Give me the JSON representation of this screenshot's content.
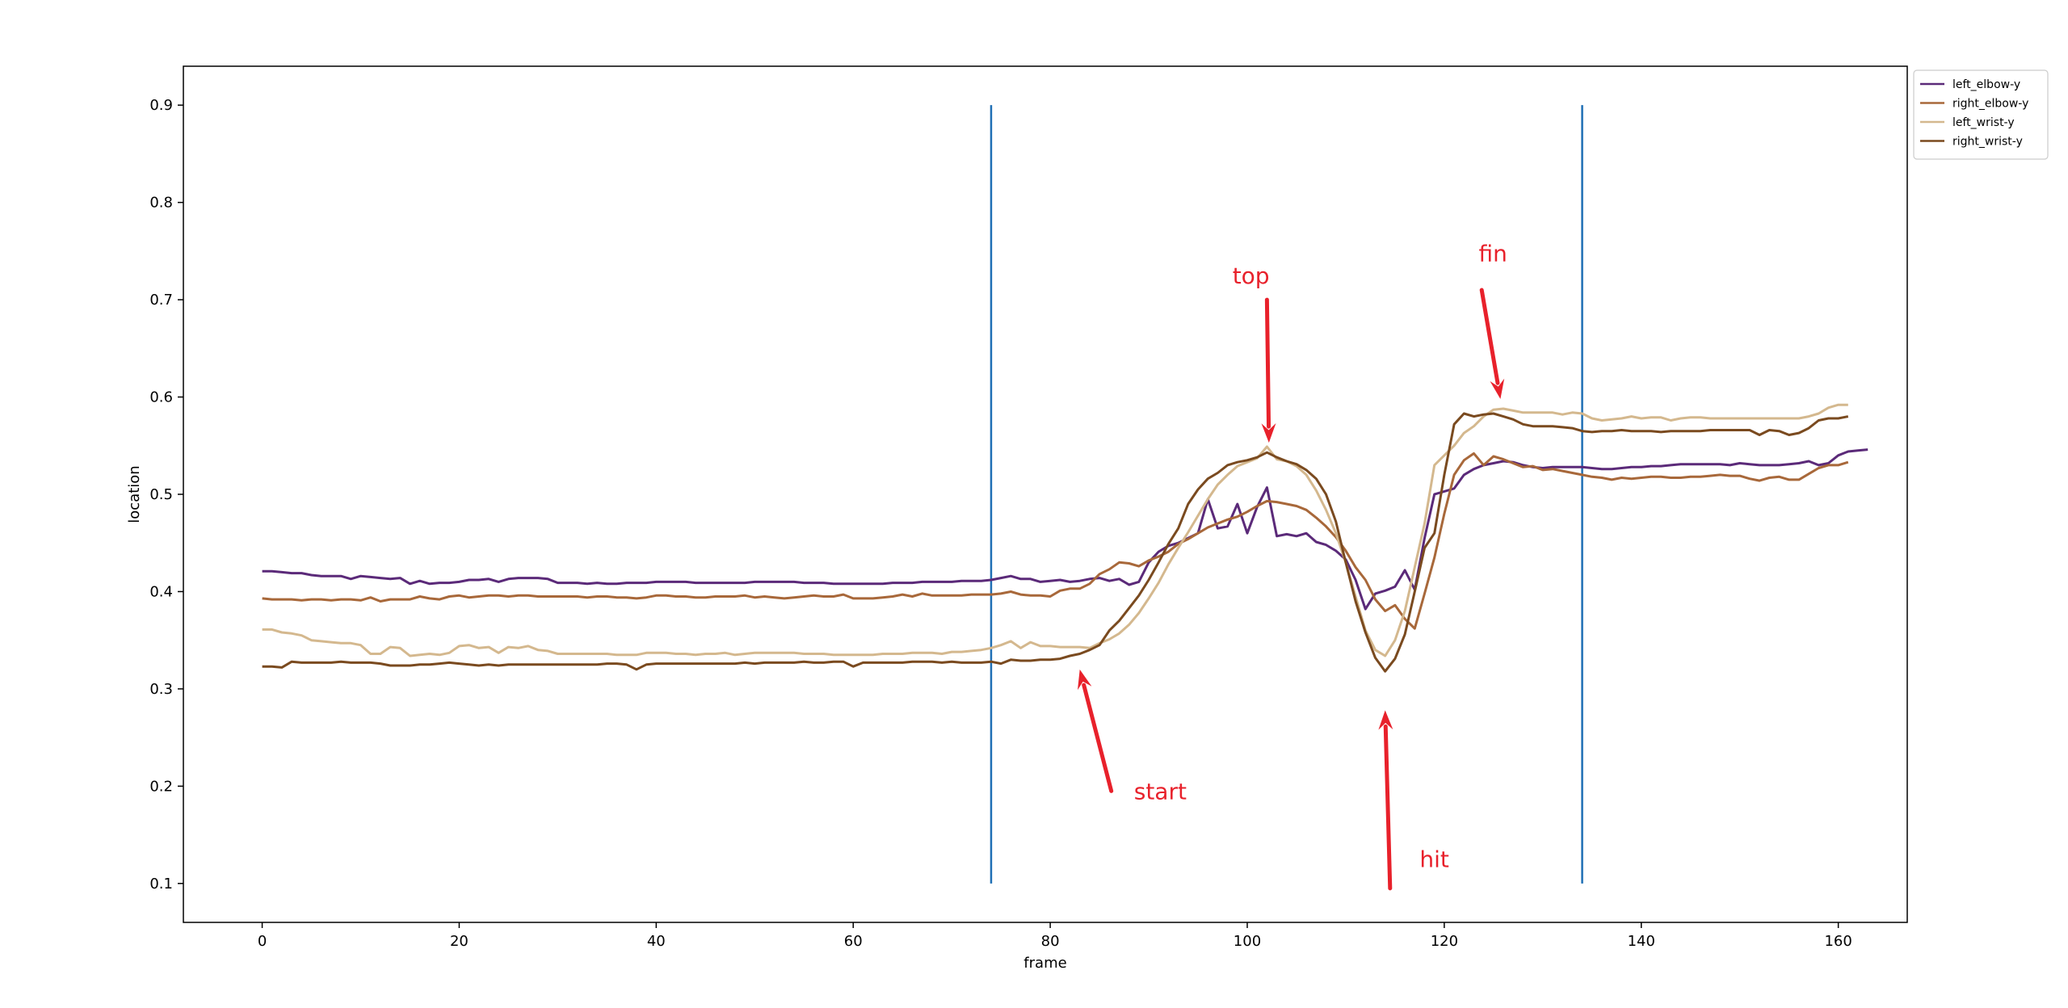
{
  "chart_data": {
    "type": "line",
    "title": "",
    "xlabel": "frame",
    "ylabel": "location",
    "xlim": [
      -8,
      167
    ],
    "ylim": [
      0.06,
      0.94
    ],
    "xticks": [
      0,
      20,
      40,
      60,
      80,
      100,
      120,
      140,
      160
    ],
    "yticks": [
      0.1,
      0.2,
      0.3,
      0.4,
      0.5,
      0.6,
      0.7,
      0.8,
      0.9
    ],
    "xtick_labels": [
      "0",
      "20",
      "40",
      "60",
      "80",
      "100",
      "120",
      "140",
      "160"
    ],
    "ytick_labels": [
      "0.1",
      "0.2",
      "0.3",
      "0.4",
      "0.5",
      "0.6",
      "0.7",
      "0.8",
      "0.9"
    ],
    "grid": false,
    "legend_position": "outside-top-right",
    "x_start": 0,
    "vlines": [
      {
        "x": 74,
        "y0": 0.1,
        "y1": 0.9,
        "color": "#1f6fb5"
      },
      {
        "x": 134,
        "y0": 0.1,
        "y1": 0.9,
        "color": "#1f6fb5"
      }
    ],
    "annotations": [
      {
        "text": "start",
        "text_x": 88.5,
        "text_y": 0.195,
        "arrow_from": [
          86.2,
          0.195
        ],
        "arrow_to": [
          83.0,
          0.32
        ]
      },
      {
        "text": "top",
        "text_x": 98.5,
        "text_y": 0.725,
        "arrow_from": [
          102.0,
          0.7
        ],
        "arrow_to": [
          102.2,
          0.553
        ]
      },
      {
        "text": "hit",
        "text_x": 117.5,
        "text_y": 0.125,
        "arrow_from": [
          114.5,
          0.095
        ],
        "arrow_to": [
          114.0,
          0.278
        ]
      },
      {
        "text": "fin",
        "text_x": 123.5,
        "text_y": 0.748,
        "arrow_from": [
          123.8,
          0.71
        ],
        "arrow_to": [
          125.7,
          0.598
        ]
      }
    ],
    "series": [
      {
        "name": "left_elbow-y",
        "color": "#5b2a79",
        "values": [
          0.421,
          0.421,
          0.42,
          0.419,
          0.419,
          0.417,
          0.416,
          0.416,
          0.416,
          0.413,
          0.416,
          0.415,
          0.414,
          0.413,
          0.414,
          0.408,
          0.411,
          0.408,
          0.409,
          0.409,
          0.41,
          0.412,
          0.412,
          0.413,
          0.41,
          0.413,
          0.414,
          0.414,
          0.414,
          0.413,
          0.409,
          0.409,
          0.409,
          0.408,
          0.409,
          0.408,
          0.408,
          0.409,
          0.409,
          0.409,
          0.41,
          0.41,
          0.41,
          0.41,
          0.409,
          0.409,
          0.409,
          0.409,
          0.409,
          0.409,
          0.41,
          0.41,
          0.41,
          0.41,
          0.41,
          0.409,
          0.409,
          0.409,
          0.408,
          0.408,
          0.408,
          0.408,
          0.408,
          0.408,
          0.409,
          0.409,
          0.409,
          0.41,
          0.41,
          0.41,
          0.41,
          0.411,
          0.411,
          0.411,
          0.412,
          0.414,
          0.416,
          0.413,
          0.413,
          0.41,
          0.411,
          0.412,
          0.41,
          0.411,
          0.413,
          0.414,
          0.411,
          0.413,
          0.407,
          0.41,
          0.43,
          0.441,
          0.447,
          0.45,
          0.455,
          0.46,
          0.495,
          0.465,
          0.467,
          0.49,
          0.46,
          0.487,
          0.507,
          0.457,
          0.459,
          0.457,
          0.46,
          0.451,
          0.448,
          0.442,
          0.433,
          0.412,
          0.382,
          0.398,
          0.401,
          0.405,
          0.422,
          0.402,
          0.455,
          0.5,
          0.503,
          0.506,
          0.52,
          0.526,
          0.53,
          0.532,
          0.534,
          0.533,
          0.53,
          0.528,
          0.527,
          0.528,
          0.528,
          0.528,
          0.528,
          0.527,
          0.526,
          0.526,
          0.527,
          0.528,
          0.528,
          0.529,
          0.529,
          0.53,
          0.531,
          0.531,
          0.531,
          0.531,
          0.531,
          0.53,
          0.532,
          0.531,
          0.53,
          0.53,
          0.53,
          0.531,
          0.532,
          0.534,
          0.53,
          0.532,
          0.54,
          0.544,
          0.545,
          0.546
        ]
      },
      {
        "name": "right_elbow-y",
        "color": "#a8683a",
        "values": [
          0.393,
          0.392,
          0.392,
          0.392,
          0.391,
          0.392,
          0.392,
          0.391,
          0.392,
          0.392,
          0.391,
          0.394,
          0.39,
          0.392,
          0.392,
          0.392,
          0.395,
          0.393,
          0.392,
          0.395,
          0.396,
          0.394,
          0.395,
          0.396,
          0.396,
          0.395,
          0.396,
          0.396,
          0.395,
          0.395,
          0.395,
          0.395,
          0.395,
          0.394,
          0.395,
          0.395,
          0.394,
          0.394,
          0.393,
          0.394,
          0.396,
          0.396,
          0.395,
          0.395,
          0.394,
          0.394,
          0.395,
          0.395,
          0.395,
          0.396,
          0.394,
          0.395,
          0.394,
          0.393,
          0.394,
          0.395,
          0.396,
          0.395,
          0.395,
          0.397,
          0.393,
          0.393,
          0.393,
          0.394,
          0.395,
          0.397,
          0.395,
          0.398,
          0.396,
          0.396,
          0.396,
          0.396,
          0.397,
          0.397,
          0.397,
          0.398,
          0.4,
          0.397,
          0.396,
          0.396,
          0.395,
          0.401,
          0.403,
          0.403,
          0.408,
          0.418,
          0.423,
          0.43,
          0.429,
          0.426,
          0.432,
          0.436,
          0.441,
          0.449,
          0.454,
          0.46,
          0.466,
          0.47,
          0.474,
          0.477,
          0.482,
          0.488,
          0.493,
          0.492,
          0.49,
          0.488,
          0.484,
          0.476,
          0.467,
          0.456,
          0.442,
          0.425,
          0.412,
          0.392,
          0.38,
          0.386,
          0.372,
          0.362,
          0.398,
          0.435,
          0.48,
          0.52,
          0.535,
          0.542,
          0.53,
          0.539,
          0.536,
          0.532,
          0.528,
          0.529,
          0.525,
          0.526,
          0.524,
          0.522,
          0.52,
          0.518,
          0.517,
          0.515,
          0.517,
          0.516,
          0.517,
          0.518,
          0.518,
          0.517,
          0.517,
          0.518,
          0.518,
          0.519,
          0.52,
          0.519,
          0.519,
          0.516,
          0.514,
          0.517,
          0.518,
          0.515,
          0.515,
          0.521,
          0.527,
          0.53,
          0.53,
          0.533
        ]
      },
      {
        "name": "left_wrist-y",
        "color": "#d4b88e",
        "values": [
          0.361,
          0.361,
          0.358,
          0.357,
          0.355,
          0.35,
          0.349,
          0.348,
          0.347,
          0.347,
          0.345,
          0.336,
          0.336,
          0.343,
          0.342,
          0.334,
          0.335,
          0.336,
          0.335,
          0.337,
          0.344,
          0.345,
          0.342,
          0.343,
          0.337,
          0.343,
          0.342,
          0.344,
          0.34,
          0.339,
          0.336,
          0.336,
          0.336,
          0.336,
          0.336,
          0.336,
          0.335,
          0.335,
          0.335,
          0.337,
          0.337,
          0.337,
          0.336,
          0.336,
          0.335,
          0.336,
          0.336,
          0.337,
          0.335,
          0.336,
          0.337,
          0.337,
          0.337,
          0.337,
          0.337,
          0.336,
          0.336,
          0.336,
          0.335,
          0.335,
          0.335,
          0.335,
          0.335,
          0.336,
          0.336,
          0.336,
          0.337,
          0.337,
          0.337,
          0.336,
          0.338,
          0.338,
          0.339,
          0.34,
          0.342,
          0.345,
          0.349,
          0.342,
          0.348,
          0.344,
          0.344,
          0.343,
          0.343,
          0.343,
          0.342,
          0.347,
          0.351,
          0.357,
          0.366,
          0.378,
          0.393,
          0.409,
          0.428,
          0.445,
          0.461,
          0.478,
          0.495,
          0.51,
          0.52,
          0.529,
          0.533,
          0.537,
          0.549,
          0.536,
          0.534,
          0.529,
          0.52,
          0.504,
          0.484,
          0.46,
          0.43,
          0.395,
          0.36,
          0.34,
          0.334,
          0.35,
          0.38,
          0.425,
          0.47,
          0.53,
          0.54,
          0.55,
          0.563,
          0.57,
          0.58,
          0.587,
          0.588,
          0.586,
          0.584,
          0.584,
          0.584,
          0.584,
          0.582,
          0.584,
          0.583,
          0.578,
          0.576,
          0.577,
          0.578,
          0.58,
          0.578,
          0.579,
          0.579,
          0.576,
          0.578,
          0.579,
          0.579,
          0.578,
          0.578,
          0.578,
          0.578,
          0.578,
          0.578,
          0.578,
          0.578,
          0.578,
          0.578,
          0.58,
          0.583,
          0.589,
          0.592,
          0.592
        ]
      },
      {
        "name": "right_wrist-y",
        "color": "#7a4a1f",
        "values": [
          0.323,
          0.323,
          0.322,
          0.328,
          0.327,
          0.327,
          0.327,
          0.327,
          0.328,
          0.327,
          0.327,
          0.327,
          0.326,
          0.324,
          0.324,
          0.324,
          0.325,
          0.325,
          0.326,
          0.327,
          0.326,
          0.325,
          0.324,
          0.325,
          0.324,
          0.325,
          0.325,
          0.325,
          0.325,
          0.325,
          0.325,
          0.325,
          0.325,
          0.325,
          0.325,
          0.326,
          0.326,
          0.325,
          0.32,
          0.325,
          0.326,
          0.326,
          0.326,
          0.326,
          0.326,
          0.326,
          0.326,
          0.326,
          0.326,
          0.327,
          0.326,
          0.327,
          0.327,
          0.327,
          0.327,
          0.328,
          0.327,
          0.327,
          0.328,
          0.328,
          0.323,
          0.327,
          0.327,
          0.327,
          0.327,
          0.327,
          0.328,
          0.328,
          0.328,
          0.327,
          0.328,
          0.327,
          0.327,
          0.327,
          0.328,
          0.326,
          0.33,
          0.329,
          0.329,
          0.33,
          0.33,
          0.331,
          0.334,
          0.336,
          0.34,
          0.345,
          0.36,
          0.37,
          0.383,
          0.396,
          0.412,
          0.43,
          0.449,
          0.465,
          0.49,
          0.505,
          0.516,
          0.522,
          0.53,
          0.533,
          0.535,
          0.538,
          0.543,
          0.538,
          0.534,
          0.531,
          0.525,
          0.516,
          0.5,
          0.472,
          0.43,
          0.39,
          0.358,
          0.332,
          0.318,
          0.331,
          0.356,
          0.4,
          0.445,
          0.46,
          0.52,
          0.572,
          0.583,
          0.58,
          0.582,
          0.583,
          0.58,
          0.577,
          0.572,
          0.57,
          0.57,
          0.57,
          0.569,
          0.568,
          0.565,
          0.564,
          0.565,
          0.565,
          0.566,
          0.565,
          0.565,
          0.565,
          0.564,
          0.565,
          0.565,
          0.565,
          0.565,
          0.566,
          0.566,
          0.566,
          0.566,
          0.566,
          0.561,
          0.566,
          0.565,
          0.561,
          0.563,
          0.568,
          0.576,
          0.578,
          0.578,
          0.58
        ]
      }
    ]
  }
}
